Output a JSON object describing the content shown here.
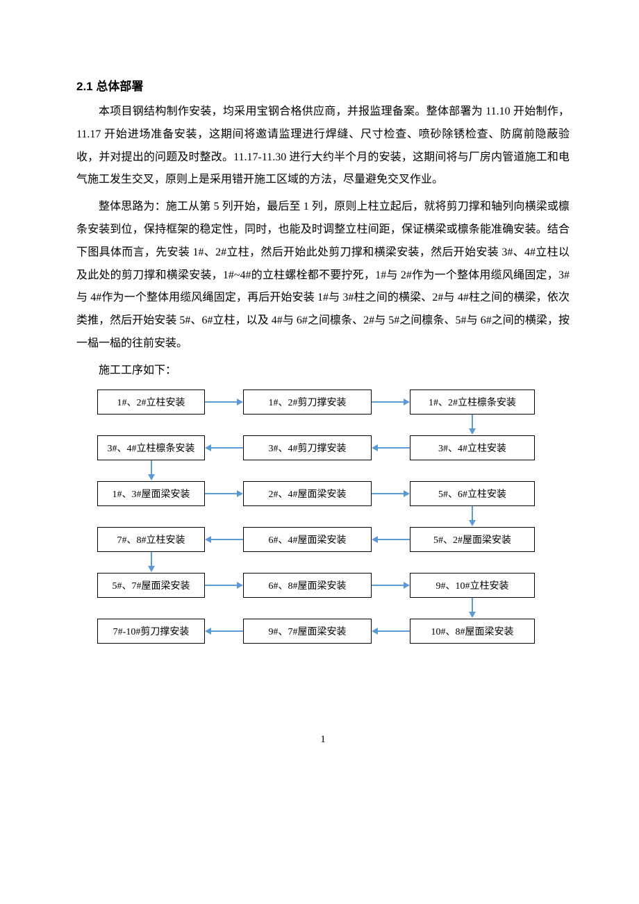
{
  "heading": "2.1 总体部署",
  "paragraphs": [
    "本项目钢结构制作安装，均采用宝钢合格供应商，并报监理备案。整体部署为 11.10 开始制作，11.17 开始进场准备安装，这期间将邀请监理进行焊缝、尺寸检查、喷砂除锈检查、防腐前隐蔽验收，并对提出的问题及时整改。11.17-11.30 进行大约半个月的安装，这期间将与厂房内管道施工和电气施工发生交叉，原则上是采用错开施工区域的方法，尽量避免交叉作业。",
    "整体思路为：施工从第 5 列开始，最后至 1 列，原则上柱立起后，就将剪刀撑和轴列向横梁或檩条安装到位，保持框架的稳定性，同时，也能及时调整立柱间距，保证横梁或檩条能准确安装。结合下图具体而言，先安装 1#、2#立柱，然后开始此处剪刀撑和横梁安装，然后开始安装 3#、4#立柱以及此处的剪刀撑和横梁安装，1#~4#的立柱螺栓都不要拧死，1#与 2#作为一个整体用缆风绳固定，3#与 4#作为一个整体用缆风绳固定，再后开始安装 1#与 3#柱之间的横梁、2#与 4#柱之间的横梁，依次类推，然后开始安装 5#、6#立柱，以及 4#与 6#之间檩条、2#与 5#之间檩条、5#与 6#之间的横梁，按一榀一榀的往前安装。"
  ],
  "procedure_label": "施工工序如下：",
  "flowchart": {
    "arrow_color": "#5b9bd5",
    "box_border_color": "#000000",
    "font_size": 14,
    "rows": [
      {
        "dir": "right",
        "boxes": [
          "1#、2#立柱安装",
          "1#、2#剪刀撑安装",
          "1#、2#立柱檩条安装"
        ],
        "down_after_col": 2
      },
      {
        "dir": "left",
        "boxes": [
          "3#、4#立柱檩条安装",
          "3#、4#剪刀撑安装",
          "3#、4#立柱安装"
        ],
        "down_after_col": 0
      },
      {
        "dir": "right",
        "boxes": [
          "1#、3#屋面梁安装",
          "2#、4#屋面梁安装",
          "5#、6#立柱安装"
        ],
        "down_after_col": 2
      },
      {
        "dir": "left",
        "boxes": [
          "7#、8#立柱安装",
          "6#、4#屋面梁安装",
          "5#、2#屋面梁安装"
        ],
        "down_after_col": 0
      },
      {
        "dir": "right",
        "boxes": [
          "5#、7#屋面梁安装",
          "6#、8#屋面梁安装",
          "9#、10#立柱安装"
        ],
        "down_after_col": 2
      },
      {
        "dir": "left",
        "boxes": [
          "7#-10#剪刀撑安装",
          "9#、7#屋面梁安装",
          "10#、8#屋面梁安装"
        ]
      }
    ]
  },
  "page_number": "1"
}
